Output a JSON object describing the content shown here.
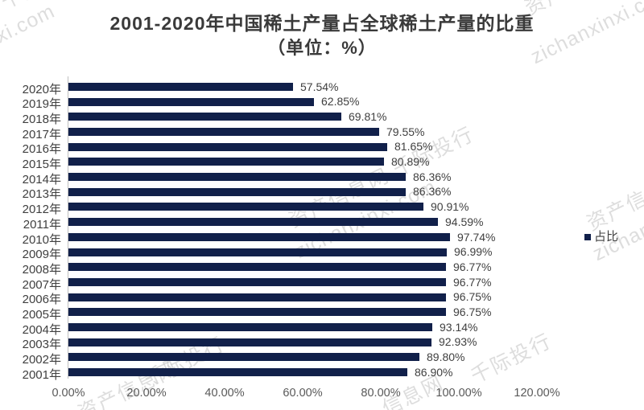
{
  "chart_data": {
    "type": "bar",
    "orientation": "horizontal",
    "title": "2001-2020年中国稀土产量占全球稀土产量的比重",
    "subtitle": "（单位：%）",
    "categories": [
      "2020年",
      "2019年",
      "2018年",
      "2017年",
      "2016年",
      "2015年",
      "2014年",
      "2013年",
      "2012年",
      "2011年",
      "2010年",
      "2009年",
      "2008年",
      "2007年",
      "2006年",
      "2005年",
      "2004年",
      "2003年",
      "2002年",
      "2001年"
    ],
    "series": [
      {
        "name": "占比",
        "values": [
          57.54,
          62.85,
          69.81,
          79.55,
          81.65,
          80.89,
          86.36,
          86.36,
          90.91,
          94.59,
          97.74,
          96.99,
          96.77,
          96.77,
          96.75,
          96.75,
          93.14,
          92.93,
          89.8,
          86.9
        ]
      }
    ],
    "value_labels": [
      "57.54%",
      "62.85%",
      "69.81%",
      "79.55%",
      "81.65%",
      "80.89%",
      "86.36%",
      "86.36%",
      "90.91%",
      "94.59%",
      "97.74%",
      "96.99%",
      "96.77%",
      "96.77%",
      "96.75%",
      "96.75%",
      "93.14%",
      "92.93%",
      "89.80%",
      "86.90%"
    ],
    "x_ticks": [
      "0.00%",
      "20.00%",
      "40.00%",
      "60.00%",
      "80.00%",
      "100.00%",
      "120.00%"
    ],
    "xlim": [
      0,
      120
    ],
    "ylabel": "",
    "xlabel": "",
    "grid": false,
    "legend_position": "right",
    "bar_color": "#11204A"
  },
  "legend": {
    "label": "占比",
    "color": "#11204A"
  },
  "watermarks": [
    "网 千际投行",
    "xi.com",
    "资产信息网 千际投行",
    "zichanxinxi.com",
    "资产信息网 千际投行",
    "zichanxinxi.com",
    "资产信息网",
    "zichanxinxi.com",
    "千际投行",
    "千际投行",
    "资产信息网",
    "信息网"
  ]
}
